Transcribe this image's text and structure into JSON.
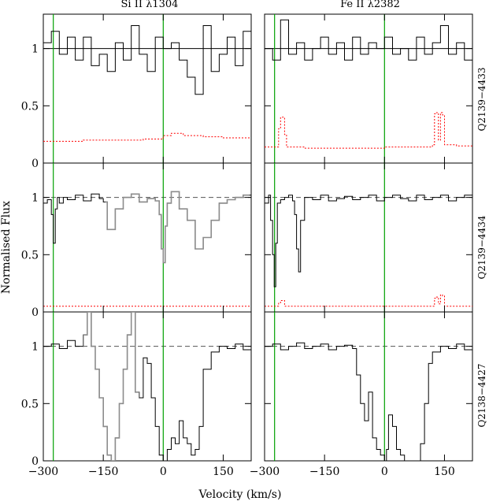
{
  "figure": {
    "ylabel": "Normalised Flux",
    "xlabel": "Velocity (km/s)",
    "colors": {
      "spectrum": "#000000",
      "error": "#ff0000",
      "continuum": "#000000",
      "component": "#00a000",
      "blend": "#8c8c8c"
    }
  },
  "chart_data": {
    "type": "line",
    "columns": [
      "Si II λ1304",
      "Fe II λ2382"
    ],
    "rows": [
      "Q2139−4433",
      "Q2139−4434",
      "Q2138−4427"
    ],
    "xlim": [
      -300,
      220
    ],
    "ylim": [
      0,
      1.3
    ],
    "x_ticks": [
      -300,
      -150,
      0,
      150
    ],
    "x_tick_labels": [
      "−300",
      "−150",
      "0",
      "150"
    ],
    "y_ticks": [
      0,
      0.5,
      1
    ],
    "y_tick_labels": [
      "0",
      "0.5",
      "1"
    ],
    "components_kms": [
      -275,
      0
    ],
    "continuum_level": 1.0,
    "panels": [
      {
        "row": 0,
        "col": 0,
        "dashed_continuum": false,
        "grey_range": null,
        "series": [
          {
            "role": "flux",
            "x": [
              -300,
              -280,
              -260,
              -240,
              -220,
              -200,
              -180,
              -160,
              -140,
              -120,
              -100,
              -80,
              -60,
              -40,
              -20,
              0,
              20,
              40,
              60,
              80,
              100,
              120,
              140,
              160,
              180,
              200,
              220
            ],
            "y": [
              1.05,
              1.15,
              0.95,
              1.1,
              0.9,
              1.1,
              0.85,
              0.95,
              0.8,
              1.05,
              0.9,
              1.2,
              0.95,
              0.8,
              1.1,
              1.0,
              1.05,
              0.9,
              0.75,
              0.6,
              1.2,
              0.8,
              0.95,
              1.1,
              0.85,
              1.15,
              0.9
            ]
          },
          {
            "role": "error",
            "x": [
              -300,
              -250,
              -200,
              -150,
              -100,
              -50,
              0,
              20,
              50,
              100,
              150,
              220
            ],
            "y": [
              0.19,
              0.19,
              0.2,
              0.2,
              0.2,
              0.21,
              0.24,
              0.26,
              0.24,
              0.23,
              0.22,
              0.22
            ]
          }
        ]
      },
      {
        "row": 0,
        "col": 1,
        "dashed_continuum": false,
        "grey_range": null,
        "series": [
          {
            "role": "flux",
            "x": [
              -300,
              -280,
              -260,
              -240,
              -220,
              -200,
              -180,
              -160,
              -140,
              -120,
              -100,
              -80,
              -60,
              -40,
              -20,
              0,
              20,
              40,
              60,
              80,
              100,
              120,
              140,
              160,
              180,
              200,
              220
            ],
            "y": [
              1.0,
              0.9,
              1.25,
              0.95,
              1.05,
              0.9,
              1.0,
              1.1,
              0.95,
              1.05,
              0.9,
              1.1,
              0.95,
              1.05,
              1.0,
              1.1,
              0.95,
              1.0,
              0.9,
              1.1,
              0.95,
              1.05,
              1.2,
              0.95,
              1.05,
              0.9,
              1.0
            ]
          },
          {
            "role": "error",
            "x": [
              -300,
              -270,
              -265,
              -260,
              -255,
              -250,
              -245,
              -200,
              -100,
              0,
              100,
              120,
              125,
              130,
              135,
              140,
              145,
              150,
              180,
              220
            ],
            "y": [
              0.14,
              0.14,
              0.3,
              0.4,
              0.4,
              0.25,
              0.14,
              0.13,
              0.13,
              0.14,
              0.14,
              0.16,
              0.43,
              0.44,
              0.2,
              0.44,
              0.42,
              0.16,
              0.15,
              0.15
            ]
          }
        ]
      },
      {
        "row": 1,
        "col": 0,
        "dashed_continuum": true,
        "grey_range": [
          -145,
          215
        ],
        "series": [
          {
            "role": "flux",
            "x": [
              -300,
              -290,
              -280,
              -275,
              -270,
              -265,
              -260,
              -250,
              -240,
              -220,
              -200,
              -180,
              -160,
              -150,
              -140,
              -120,
              -100,
              -80,
              -60,
              -40,
              -20,
              -10,
              -5,
              0,
              5,
              10,
              20,
              40,
              60,
              80,
              100,
              120,
              140,
              160,
              180,
              200,
              220
            ],
            "y": [
              0.95,
              0.98,
              0.85,
              0.6,
              0.9,
              1.0,
              0.95,
              1.0,
              0.98,
              1.02,
              0.97,
              1.03,
              0.99,
              0.96,
              0.72,
              0.9,
              1.0,
              1.03,
              0.96,
              0.99,
              0.97,
              0.85,
              0.55,
              0.43,
              0.75,
              0.95,
              1.05,
              0.9,
              0.8,
              0.55,
              0.65,
              0.8,
              0.95,
              0.98,
              1.0,
              1.02,
              0.97
            ]
          },
          {
            "role": "error",
            "x": [
              -300,
              -200,
              -100,
              0,
              100,
              220
            ],
            "y": [
              0.05,
              0.05,
              0.05,
              0.05,
              0.05,
              0.05
            ]
          }
        ]
      },
      {
        "row": 1,
        "col": 1,
        "dashed_continuum": true,
        "grey_range": null,
        "series": [
          {
            "role": "flux",
            "x": [
              -300,
              -290,
              -285,
              -280,
              -276,
              -272,
              -268,
              -260,
              -250,
              -240,
              -230,
              -225,
              -220,
              -215,
              -210,
              -200,
              -180,
              -160,
              -140,
              -120,
              -100,
              -80,
              -60,
              -40,
              -20,
              0,
              20,
              40,
              60,
              80,
              100,
              120,
              140,
              160,
              180,
              200,
              220
            ],
            "y": [
              0.95,
              1.02,
              0.8,
              0.5,
              0.22,
              0.6,
              0.95,
              0.98,
              1.0,
              1.02,
              0.97,
              0.85,
              0.55,
              0.35,
              0.8,
              1.0,
              0.98,
              1.02,
              0.97,
              0.99,
              1.01,
              0.98,
              1.0,
              1.02,
              0.97,
              1.0,
              1.02,
              0.99,
              0.97,
              1.02,
              0.98,
              1.0,
              1.02,
              0.97,
              1.0,
              1.02,
              0.98
            ]
          },
          {
            "role": "error",
            "x": [
              -300,
              -270,
              -265,
              -260,
              -250,
              -100,
              0,
              100,
              120,
              125,
              130,
              135,
              140,
              145,
              150,
              220
            ],
            "y": [
              0.05,
              0.05,
              0.08,
              0.1,
              0.05,
              0.05,
              0.05,
              0.05,
              0.05,
              0.12,
              0.13,
              0.07,
              0.15,
              0.14,
              0.05,
              0.05
            ]
          }
        ]
      },
      {
        "row": 2,
        "col": 0,
        "dashed_continuum": true,
        "grey_range": [
          -200,
          -60
        ],
        "series": [
          {
            "role": "flux",
            "x": [
              -300,
              -280,
              -260,
              -240,
              -220,
              -200,
              -190,
              -180,
              -170,
              -160,
              -150,
              -140,
              -130,
              -120,
              -110,
              -100,
              -90,
              -80,
              -70,
              -60,
              -50,
              -40,
              -30,
              -20,
              -10,
              0,
              10,
              20,
              30,
              40,
              50,
              60,
              70,
              80,
              90,
              100,
              120,
              140,
              160,
              180,
              200,
              220
            ],
            "y": [
              1.0,
              1.02,
              0.98,
              1.05,
              1.0,
              1.1,
              1.3,
              1.0,
              0.8,
              0.55,
              0.3,
              0.05,
              0.0,
              0.2,
              0.5,
              0.8,
              1.1,
              1.3,
              0.6,
              0.55,
              0.9,
              0.85,
              0.55,
              0.3,
              0.05,
              0.0,
              0.1,
              0.2,
              0.15,
              0.35,
              0.2,
              0.15,
              0.05,
              0.1,
              0.3,
              0.8,
              0.95,
              1.0,
              0.98,
              1.02,
              0.97,
              1.0
            ]
          }
        ]
      },
      {
        "row": 2,
        "col": 1,
        "dashed_continuum": true,
        "grey_range": null,
        "series": [
          {
            "role": "flux",
            "x": [
              -300,
              -280,
              -260,
              -240,
              -220,
              -200,
              -180,
              -160,
              -140,
              -120,
              -100,
              -80,
              -70,
              -60,
              -50,
              -40,
              -30,
              -20,
              -10,
              0,
              5,
              10,
              20,
              30,
              40,
              50,
              60,
              70,
              80,
              90,
              100,
              110,
              120,
              140,
              160,
              180,
              200,
              220
            ],
            "y": [
              1.0,
              1.02,
              0.97,
              1.0,
              1.03,
              0.98,
              1.0,
              1.02,
              0.97,
              1.0,
              1.01,
              0.98,
              0.75,
              0.5,
              0.35,
              0.6,
              0.2,
              0.1,
              0.05,
              0.0,
              0.1,
              0.4,
              0.3,
              0.1,
              0.05,
              0.0,
              0.0,
              0.0,
              0.0,
              0.15,
              0.5,
              0.85,
              0.95,
              1.0,
              0.98,
              1.02,
              0.97,
              1.0
            ]
          }
        ]
      }
    ]
  }
}
